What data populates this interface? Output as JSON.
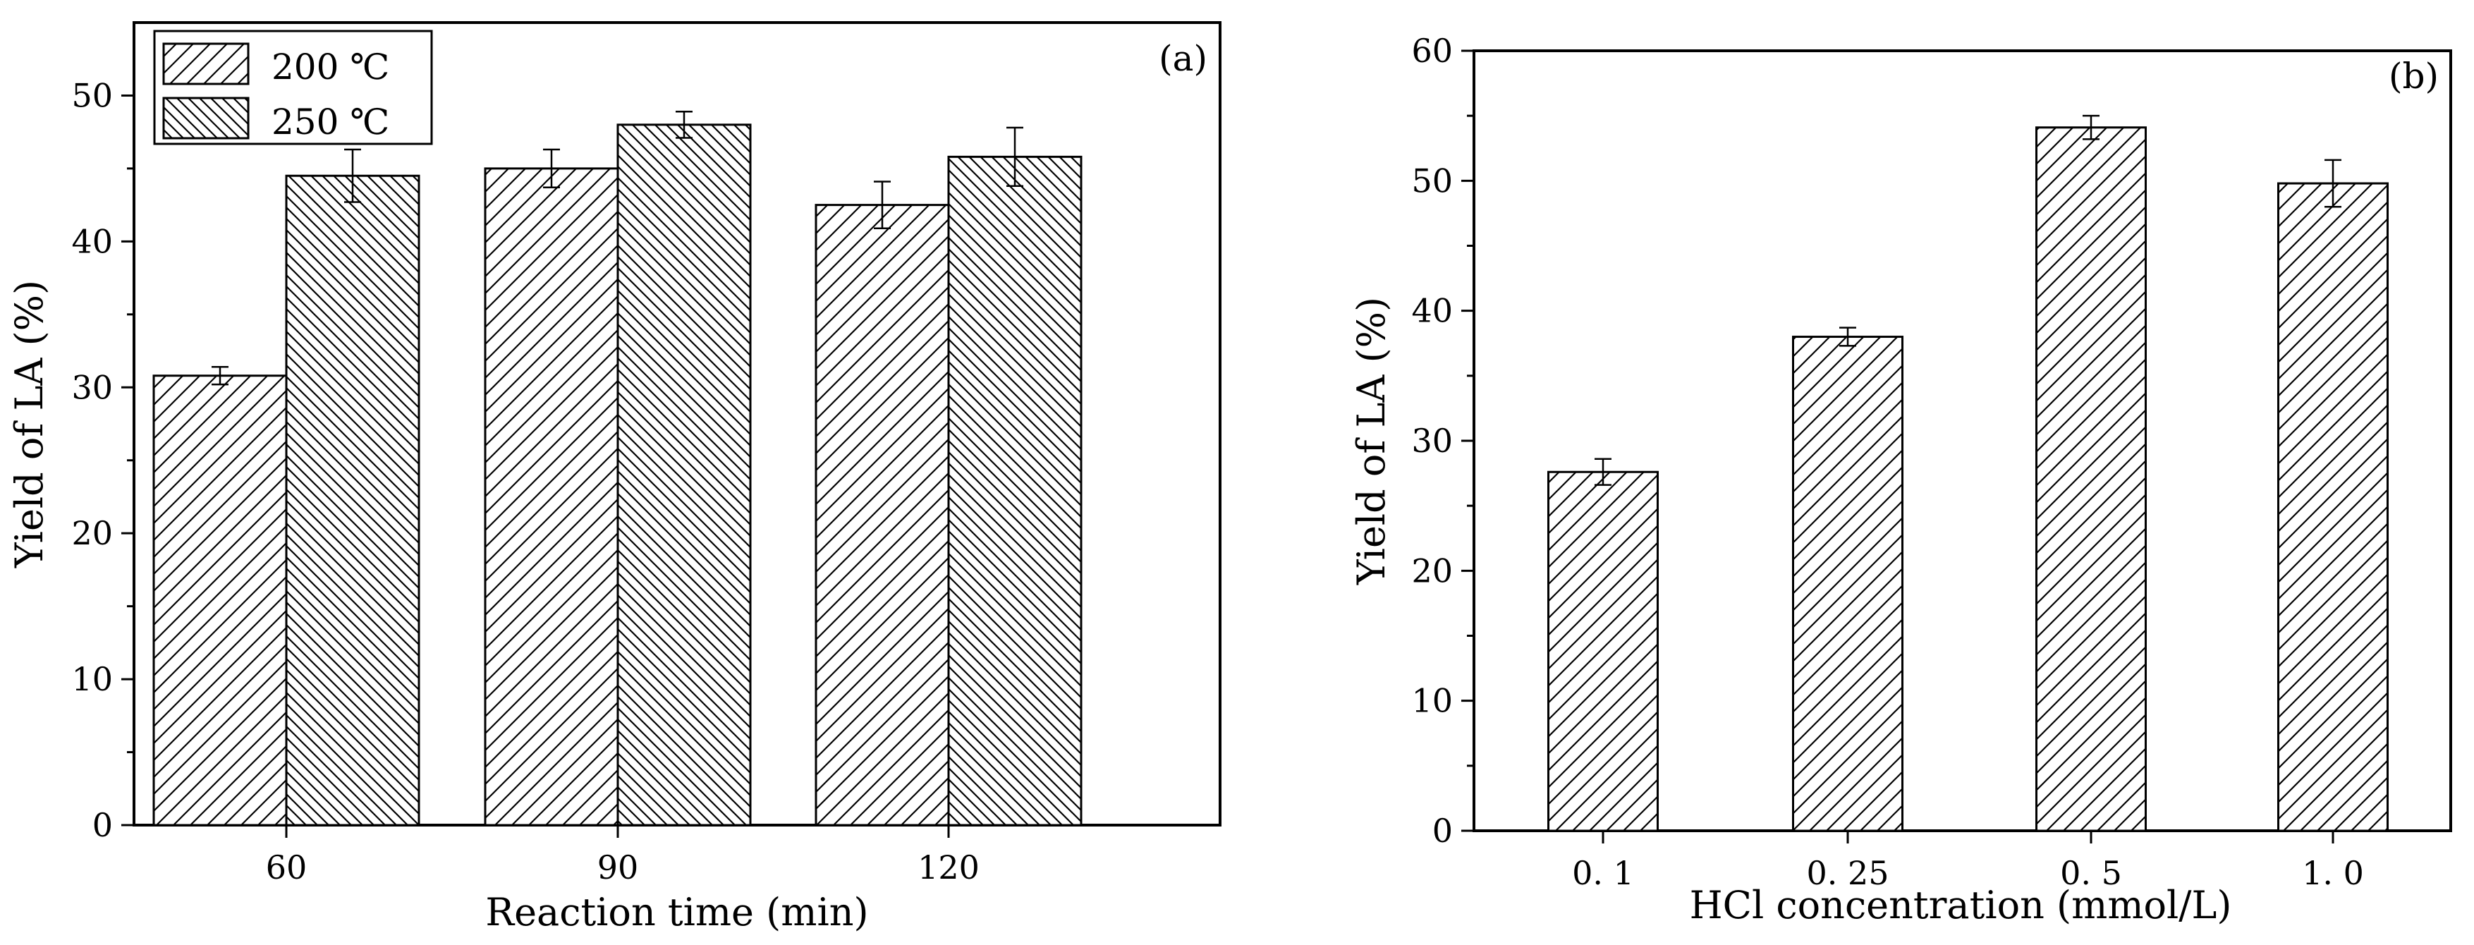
{
  "chart_data": [
    {
      "type": "bar",
      "panel_label": "(a)",
      "xlabel": "Reaction time (min)",
      "ylabel": "Yield of LA (%)",
      "ylim": [
        0,
        55
      ],
      "yticks": [
        0,
        10,
        20,
        30,
        40,
        50
      ],
      "categories": [
        "60",
        "90",
        "120"
      ],
      "legend_position": "top-left",
      "series": [
        {
          "name": "200 ℃",
          "hatch": "forward",
          "values": [
            30.8,
            45.0,
            42.5
          ],
          "errors": [
            0.6,
            1.3,
            1.6
          ]
        },
        {
          "name": "250 ℃",
          "hatch": "backward",
          "values": [
            44.5,
            48.0,
            45.8
          ],
          "errors": [
            1.8,
            0.9,
            2.0
          ]
        }
      ]
    },
    {
      "type": "bar",
      "panel_label": "(b)",
      "xlabel": "HCl concentration (mmol/L)",
      "ylabel": "Yield of LA (%)",
      "ylim": [
        0,
        60
      ],
      "yticks": [
        0,
        10,
        20,
        30,
        40,
        50,
        60
      ],
      "categories": [
        "0. 1",
        "0. 25",
        "0. 5",
        "1. 0"
      ],
      "series": [
        {
          "name": "",
          "hatch": "forward",
          "values": [
            27.6,
            38.0,
            54.1,
            49.8
          ],
          "errors": [
            1.0,
            0.7,
            0.9,
            1.8
          ]
        }
      ]
    }
  ]
}
